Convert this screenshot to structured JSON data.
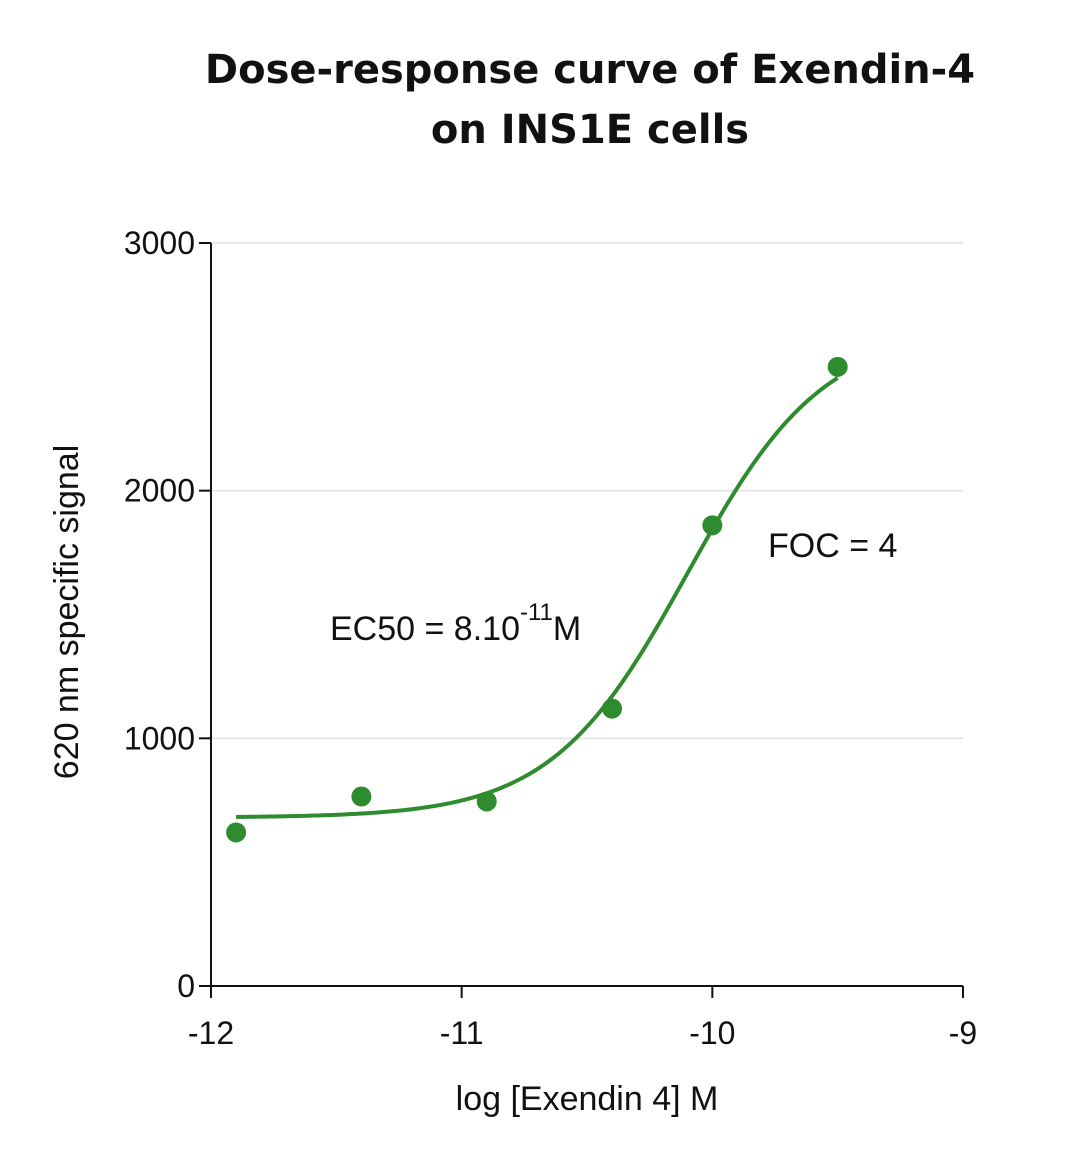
{
  "chart_data": {
    "type": "scatter",
    "title_lines": [
      "Dose-response curve of Exendin-4",
      "on INS1E cells"
    ],
    "xlabel": "log [Exendin 4] M",
    "ylabel": "620 nm specific signal",
    "xlim": [
      -12,
      -9
    ],
    "ylim": [
      0,
      3000
    ],
    "x_ticks": [
      -12,
      -11,
      -10,
      -9
    ],
    "x_tick_labels": [
      "-12",
      "-11",
      "-10",
      "-9"
    ],
    "y_ticks": [
      0,
      1000,
      2000,
      3000
    ],
    "y_tick_labels": [
      "0",
      "1000",
      "2000",
      "3000"
    ],
    "grid": "horizontal",
    "series": [
      {
        "x": [
          -11.9,
          -11.4,
          -10.9,
          -10.4,
          -10.0,
          -9.5
        ],
        "y": [
          620,
          765,
          745,
          1120,
          1860,
          2500
        ]
      }
    ],
    "fit_curve": {
      "bottom": 680,
      "top": 2650,
      "log_ec50": -10.1,
      "hill": 1.6,
      "x_range": [
        -11.9,
        -9.5
      ]
    },
    "annotations": {
      "ec50": {
        "prefix": "EC50 = 8.10",
        "superscript": "-11",
        "suffix": "M"
      },
      "foc": "FOC = 4"
    },
    "colors": {
      "series": "#2e8b2e",
      "axis": "#111111",
      "grid": "#e2e2e2"
    }
  }
}
